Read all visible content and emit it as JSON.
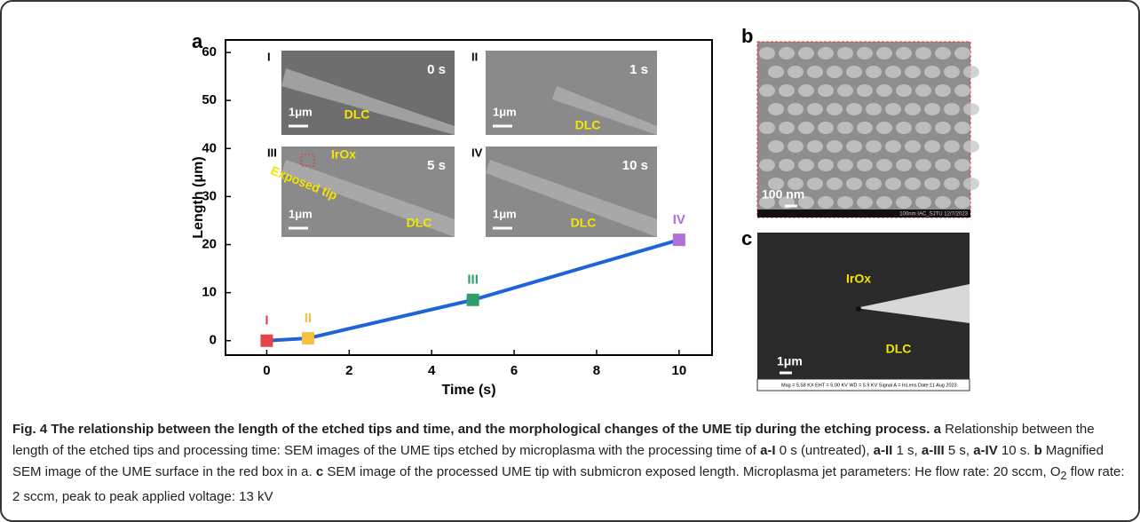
{
  "panel_labels": [
    "a",
    "b",
    "c"
  ],
  "chart_data": {
    "type": "line",
    "xlabel": "Time (s)",
    "ylabel": "Length (μm)",
    "x": [
      0,
      1,
      5,
      10
    ],
    "values": [
      0,
      0.5,
      8.5,
      21
    ],
    "point_labels": [
      "I",
      "II",
      "III",
      "IV"
    ],
    "marker_colors": [
      "#e8434a",
      "#f5c040",
      "#2f9e6a",
      "#b16fd8"
    ],
    "line_color": "#1f63d8",
    "xlim": [
      -1,
      10.8
    ],
    "xticks": [
      0,
      2,
      4,
      6,
      8,
      10
    ],
    "ylim": [
      -3,
      62.6
    ],
    "yticks": [
      0,
      10,
      20,
      30,
      40,
      50,
      60
    ]
  },
  "insets": [
    {
      "label": "I",
      "time": "0 s",
      "scale": "1μm",
      "annotations": [
        "DLC"
      ]
    },
    {
      "label": "II",
      "time": "1 s",
      "scale": "1μm",
      "annotations": [
        "DLC"
      ]
    },
    {
      "label": "III",
      "time": "5 s",
      "scale": "1μm",
      "annotations": [
        "IrOx",
        "Exposed tip",
        "DLC"
      ]
    },
    {
      "label": "IV",
      "time": "10 s",
      "scale": "1μm",
      "annotations": [
        "DLC"
      ]
    }
  ],
  "panel_b": {
    "scale": "100 nm",
    "footer": "100nm IAC_SJTU 12/7/2023"
  },
  "panel_c": {
    "annotations": [
      "IrOx",
      "DLC"
    ],
    "scale": "1μm",
    "footer": "Mag = 5.58 KX  EHT = 5.00 KV  WD = 5.9 KV  Signal A = InLens  Date:11 Aug 2023"
  },
  "caption": {
    "segments": [
      {
        "text": "Fig. 4 The relationship between the length of the etched tips and time, and the morphological changes of the UME tip during the etching process.",
        "bold": true
      },
      {
        "text": " a ",
        "bold": true
      },
      {
        "text": "Relationship between the length of the etched tips and processing time: SEM images of the UME tips etched by microplasma with the processing time of ",
        "bold": false
      },
      {
        "text": "a-I",
        "bold": true
      },
      {
        "text": " 0 s (untreated), ",
        "bold": false
      },
      {
        "text": "a-II",
        "bold": true
      },
      {
        "text": " 1 s, ",
        "bold": false
      },
      {
        "text": "a-III",
        "bold": true
      },
      {
        "text": " 5 s, ",
        "bold": false
      },
      {
        "text": "a-IV",
        "bold": true
      },
      {
        "text": " 10 s. ",
        "bold": false
      },
      {
        "text": "b",
        "bold": true
      },
      {
        "text": " Magnified SEM image of the UME surface in the red box in a. ",
        "bold": false
      },
      {
        "text": "c",
        "bold": true
      },
      {
        "text": " SEM image of the processed UME tip with submicron exposed length. Microplasma jet parameters: He flow rate: 20 sccm, O",
        "bold": false
      },
      {
        "text": "2",
        "bold": false,
        "sub": true
      },
      {
        "text": " flow rate: 2 sccm, peak to peak applied voltage: 13 kV",
        "bold": false
      }
    ]
  }
}
